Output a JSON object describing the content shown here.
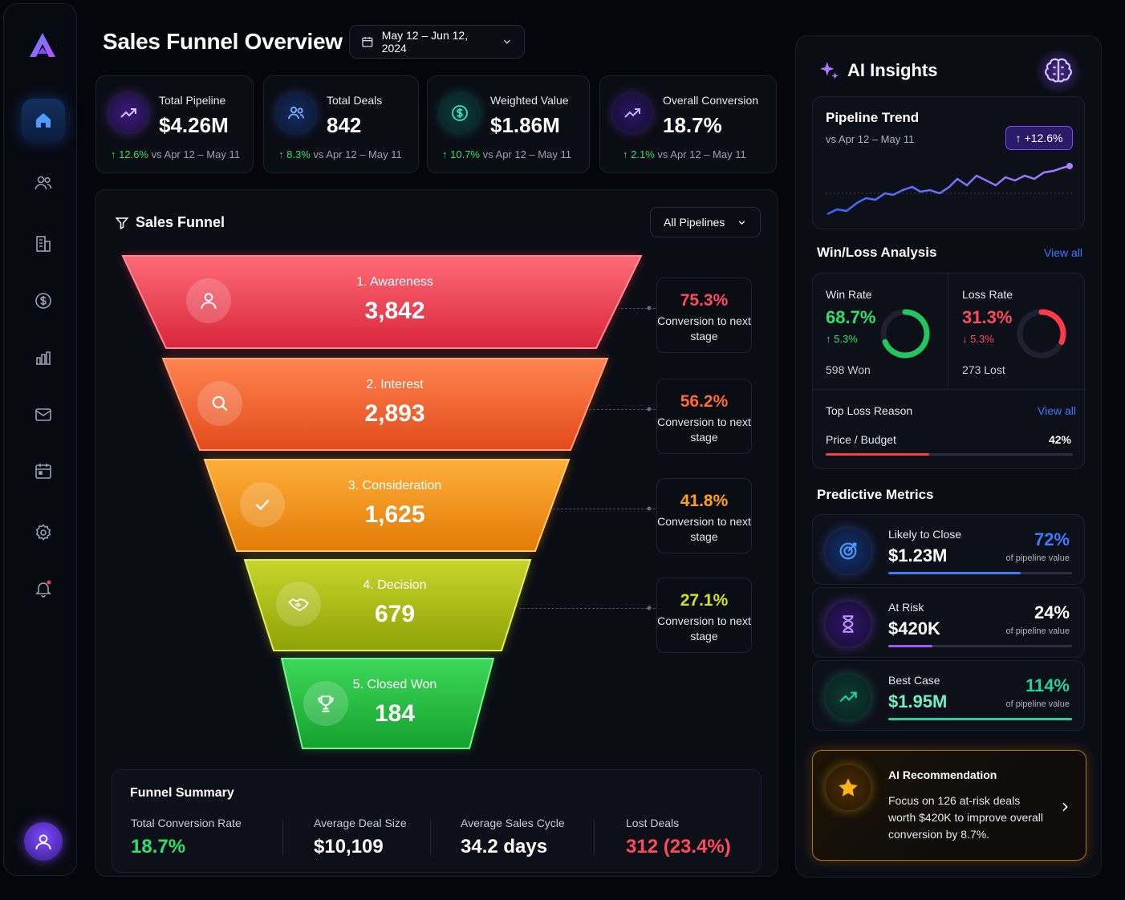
{
  "header": {
    "title": "Sales Funnel Overview",
    "date_range": "May 12 – Jun 12, 2024"
  },
  "kpis": [
    {
      "label": "Total Pipeline",
      "value": "$4.26M",
      "change": "12.6%",
      "period": "vs Apr 12 – May 11",
      "icon": "trend-up-icon"
    },
    {
      "label": "Total Deals",
      "value": "842",
      "change": "8.3%",
      "period": "vs Apr 12 – May 11",
      "icon": "users-icon"
    },
    {
      "label": "Weighted Value",
      "value": "$1.86M",
      "change": "10.7%",
      "period": "vs Apr 12 – May 11",
      "icon": "dollar-icon"
    },
    {
      "label": "Overall Conversion",
      "value": "18.7%",
      "change": "2.1%",
      "period": "vs Apr 12 – May 11",
      "icon": "trend-up-icon"
    }
  ],
  "funnel": {
    "title": "Sales Funnel",
    "filter": "All Pipelines",
    "stages": [
      {
        "name": "1. Awareness",
        "value": "3,842",
        "icon": "user-icon",
        "color": "#e8394a"
      },
      {
        "name": "2. Interest",
        "value": "2,893",
        "icon": "search-icon",
        "color": "#f05a2a"
      },
      {
        "name": "3. Consideration",
        "value": "1,625",
        "icon": "check-icon",
        "color": "#f28a0c"
      },
      {
        "name": "4. Decision",
        "value": "679",
        "icon": "handshake-icon",
        "color": "#a8b80c"
      },
      {
        "name": "5. Closed Won",
        "value": "184",
        "icon": "trophy-icon",
        "color": "#1fb53a"
      }
    ],
    "conversions": [
      {
        "pct": "75.3%",
        "text": "Conversion to next stage",
        "color": "#ff4a5a"
      },
      {
        "pct": "56.2%",
        "text": "Conversion to next stage",
        "color": "#ff6a30"
      },
      {
        "pct": "41.8%",
        "text": "Conversion to next stage",
        "color": "#ffa21a"
      },
      {
        "pct": "27.1%",
        "text": "Conversion to next stage",
        "color": "#d8e21a"
      }
    ]
  },
  "summary": {
    "title": "Funnel Summary",
    "items": [
      {
        "label": "Total Conversion Rate",
        "value": "18.7%",
        "color": "#2ee06d"
      },
      {
        "label": "Average Deal Size",
        "value": "$10,109",
        "color": "#ffffff"
      },
      {
        "label": "Average Sales Cycle",
        "value": "34.2 days",
        "color": "#ffffff"
      },
      {
        "label": "Lost Deals",
        "value": "312 (23.4%)",
        "color": "#ff4a5a"
      }
    ]
  },
  "ai": {
    "title": "AI Insights",
    "trend": {
      "title": "Pipeline Trend",
      "period": "vs Apr 12 – May 11",
      "badge": "+12.6%"
    },
    "winloss": {
      "title": "Win/Loss Analysis",
      "view_all": "View all",
      "win": {
        "label": "Win Rate",
        "value": "68.7%",
        "change": "5.3%",
        "count": "598 Won",
        "ratio": 0.687
      },
      "loss": {
        "label": "Loss Rate",
        "value": "31.3%",
        "change": "5.3%",
        "count": "273 Lost",
        "ratio": 0.313
      },
      "top_loss": {
        "label": "Top Loss Reason",
        "view_all": "View all",
        "reason": "Price / Budget",
        "pct": "42%",
        "ratio": 0.42
      }
    },
    "predictive": {
      "title": "Predictive Metrics",
      "items": [
        {
          "label": "Likely to Close",
          "value": "$1.23M",
          "pct": "72%",
          "sub": "of pipeline value",
          "ratio": 0.72,
          "color": "#3d7bff",
          "icon": "target-icon"
        },
        {
          "label": "At Risk",
          "value": "$420K",
          "pct": "24%",
          "sub": "of pipeline value",
          "ratio": 0.24,
          "color": "#9a5cff",
          "icon": "hourglass-icon"
        },
        {
          "label": "Best Case",
          "value": "$1.95M",
          "pct": "114%",
          "sub": "of pipeline value",
          "ratio": 1.0,
          "color": "#22d39a",
          "icon": "trend-up-icon"
        }
      ]
    },
    "recommendation": {
      "title": "AI Recommendation",
      "text": "Focus on 126 at-risk deals worth $420K to improve overall conversion by 8.7%."
    }
  }
}
